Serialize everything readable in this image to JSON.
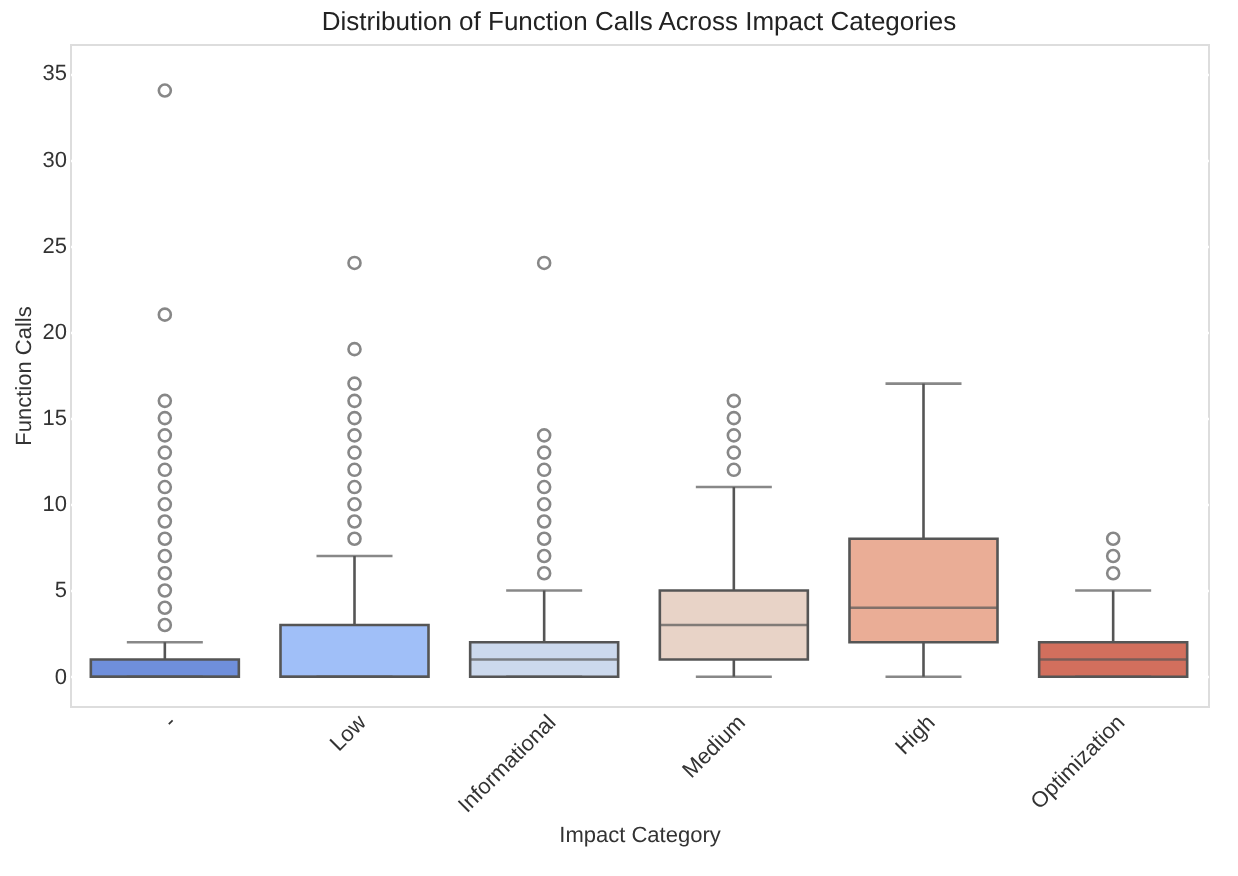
{
  "chart_data": {
    "type": "box",
    "title": "Distribution of Function Calls Across Impact Categories",
    "xlabel": "Impact Category",
    "ylabel": "Function Calls",
    "categories": [
      "-",
      "Low",
      "Informational",
      "Medium",
      "High",
      "Optimization"
    ],
    "colors": [
      "#6f8fdc",
      "#a0bff8",
      "#ccd9ed",
      "#e8d3c7",
      "#eaad96",
      "#d26f5d"
    ],
    "boxes": [
      {
        "low": 0,
        "q1": 0,
        "median": 0,
        "q3": 1,
        "high": 2,
        "outliers": [
          3,
          4,
          5,
          6,
          7,
          8,
          9,
          10,
          11,
          12,
          13,
          14,
          15,
          16,
          21,
          34
        ]
      },
      {
        "low": 0,
        "q1": 0,
        "median": 0,
        "q3": 3,
        "high": 7,
        "outliers": [
          8,
          9,
          10,
          11,
          12,
          13,
          14,
          15,
          16,
          17,
          19,
          24
        ]
      },
      {
        "low": 0,
        "q1": 0,
        "median": 1,
        "q3": 2,
        "high": 5,
        "outliers": [
          6,
          7,
          8,
          9,
          10,
          11,
          12,
          13,
          14,
          24
        ]
      },
      {
        "low": 0,
        "q1": 1,
        "median": 3,
        "q3": 5,
        "high": 11,
        "outliers": [
          12,
          13,
          14,
          15,
          16
        ]
      },
      {
        "low": 0,
        "q1": 2,
        "median": 4,
        "q3": 8,
        "high": 17
      },
      {
        "low": 0,
        "q1": 0,
        "median": 1,
        "q3": 2,
        "high": 5,
        "outliers": [
          6,
          7,
          8
        ]
      }
    ],
    "ylim": [
      -1.7,
      36.7
    ],
    "yticks": [
      0,
      5,
      10,
      15,
      20,
      25,
      30,
      35
    ],
    "grid": "y"
  }
}
